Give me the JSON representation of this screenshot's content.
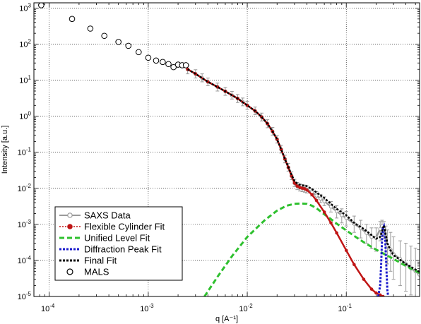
{
  "chart_data": {
    "type": "scatter",
    "xlabel": "q [A⁻¹]",
    "ylabel": "Intensity [a.u.]",
    "xscale": "log",
    "yscale": "log",
    "xlim": [
      7e-05,
      0.55
    ],
    "ylim": [
      1e-05,
      1400
    ],
    "grid": true,
    "legend_position": "lower-left",
    "x_ticks": [
      {
        "value": 0.0001,
        "mantissa": "10",
        "exp": "-4"
      },
      {
        "value": 0.001,
        "mantissa": "10",
        "exp": "-3"
      },
      {
        "value": 0.01,
        "mantissa": "10",
        "exp": "-2"
      },
      {
        "value": 0.1,
        "mantissa": "10",
        "exp": "-1"
      }
    ],
    "y_ticks": [
      {
        "value": 1e-05,
        "mantissa": "10",
        "exp": "-5"
      },
      {
        "value": 0.0001,
        "mantissa": "10",
        "exp": "-4"
      },
      {
        "value": 0.001,
        "mantissa": "10",
        "exp": "-3"
      },
      {
        "value": 0.01,
        "mantissa": "10",
        "exp": "-2"
      },
      {
        "value": 0.1,
        "mantissa": "10",
        "exp": "-1"
      },
      {
        "value": 1,
        "mantissa": "10",
        "exp": "0"
      },
      {
        "value": 10,
        "mantissa": "10",
        "exp": "1"
      },
      {
        "value": 100,
        "mantissa": "10",
        "exp": "2"
      },
      {
        "value": 1000,
        "mantissa": "10",
        "exp": "3"
      }
    ],
    "series": [
      {
        "name": "SAXS Data",
        "style": "gray-line-open-circle-errorbars",
        "color": "#9a9a9a",
        "x": [
          0.0025,
          0.003,
          0.0035,
          0.004,
          0.005,
          0.006,
          0.007,
          0.008,
          0.009,
          0.01,
          0.012,
          0.014,
          0.016,
          0.018,
          0.02,
          0.022,
          0.024,
          0.026,
          0.028,
          0.03,
          0.032,
          0.034,
          0.036,
          0.038,
          0.04,
          0.045,
          0.05,
          0.055,
          0.06,
          0.07,
          0.08,
          0.09,
          0.1,
          0.12,
          0.14,
          0.16,
          0.18,
          0.2,
          0.22,
          0.23,
          0.24,
          0.25,
          0.26,
          0.28,
          0.3,
          0.35,
          0.4,
          0.45,
          0.5,
          0.55
        ],
        "y": [
          20,
          15,
          11.5,
          9,
          6.5,
          4.9,
          3.8,
          3.1,
          2.5,
          2.0,
          1.4,
          0.95,
          0.62,
          0.38,
          0.23,
          0.12,
          0.065,
          0.038,
          0.022,
          0.014,
          0.0115,
          0.0105,
          0.0101,
          0.0098,
          0.0093,
          0.0078,
          0.0063,
          0.0052,
          0.0044,
          0.0031,
          0.0023,
          0.0018,
          0.0015,
          0.00105,
          0.00078,
          0.00058,
          0.00045,
          0.00042,
          0.00075,
          0.0009,
          0.0008,
          0.00045,
          0.00026,
          0.0002,
          0.00015,
          0.00011,
          8e-05,
          6e-05,
          5e-05,
          4e-05
        ],
        "err_low": [
          15,
          11.5,
          9,
          7,
          5,
          3.8,
          3.0,
          2.4,
          1.95,
          1.55,
          1.1,
          0.74,
          0.48,
          0.3,
          0.18,
          0.095,
          0.051,
          0.03,
          0.0175,
          0.0112,
          0.0092,
          0.0084,
          0.0081,
          0.0078,
          0.0074,
          0.0061,
          0.0049,
          0.004,
          0.0033,
          0.0022,
          0.0015,
          0.0011,
          0.0009,
          0.0006,
          0.00042,
          0.0003,
          0.00021,
          0.00018,
          0.00035,
          0.00045,
          0.0004,
          0.00018,
          8e-05,
          5e-05,
          3e-05,
          2e-05,
          1.4e-05,
          1.1e-05,
          1e-05,
          1e-05
        ],
        "err_high": [
          26,
          19.5,
          15,
          11.5,
          8.3,
          6.3,
          4.9,
          4.0,
          3.2,
          2.6,
          1.8,
          1.22,
          0.8,
          0.49,
          0.29,
          0.155,
          0.083,
          0.049,
          0.0285,
          0.0178,
          0.0145,
          0.0132,
          0.0127,
          0.0123,
          0.0117,
          0.0098,
          0.0081,
          0.0068,
          0.0058,
          0.0043,
          0.0033,
          0.0027,
          0.0023,
          0.0017,
          0.0013,
          0.001,
          0.0008,
          0.0008,
          0.0012,
          0.0013,
          0.0012,
          0.0009,
          0.0007,
          0.0006,
          0.00045,
          0.00035,
          0.0003,
          0.00025,
          0.00022,
          0.0002
        ]
      },
      {
        "name": "Flexible Cylinder Fit",
        "style": "red-line-filled-dot",
        "color": "#c01515",
        "x": [
          0.0025,
          0.003,
          0.004,
          0.005,
          0.006,
          0.008,
          0.01,
          0.012,
          0.014,
          0.016,
          0.018,
          0.02,
          0.022,
          0.024,
          0.026,
          0.028,
          0.03,
          0.032,
          0.034,
          0.036,
          0.038,
          0.04,
          0.045,
          0.05,
          0.06,
          0.07,
          0.08,
          0.1,
          0.12,
          0.15,
          0.18,
          0.2,
          0.22,
          0.235
        ],
        "y": [
          20,
          15,
          9,
          6.5,
          4.9,
          3.1,
          2.0,
          1.4,
          0.95,
          0.62,
          0.38,
          0.23,
          0.12,
          0.065,
          0.038,
          0.022,
          0.014,
          0.0115,
          0.0105,
          0.0101,
          0.0097,
          0.009,
          0.0067,
          0.0046,
          0.0022,
          0.0011,
          0.00058,
          0.00019,
          7.7e-05,
          3e-05,
          1.6e-05,
          1.25e-05,
          1.1e-05,
          1e-05
        ]
      },
      {
        "name": "Unified Level Fit",
        "style": "green-dashed",
        "color": "#2ec02e",
        "x": [
          0.0037,
          0.005,
          0.007,
          0.01,
          0.015,
          0.02,
          0.025,
          0.03,
          0.035,
          0.04,
          0.045,
          0.05,
          0.055,
          0.06,
          0.07,
          0.08,
          0.1,
          0.12,
          0.15,
          0.2,
          0.3,
          0.4,
          0.55
        ],
        "y": [
          1e-05,
          3.5e-05,
          0.00013,
          0.00045,
          0.0013,
          0.0024,
          0.0033,
          0.0037,
          0.0038,
          0.0037,
          0.0033,
          0.0028,
          0.0023,
          0.0019,
          0.0014,
          0.00105,
          0.00068,
          0.00048,
          0.00032,
          0.0002,
          0.00011,
          7e-05,
          4.5e-05
        ]
      },
      {
        "name": "Diffraction Peak Fit",
        "style": "blue-dotted",
        "color": "#1a1acc",
        "x": [
          0.21,
          0.22,
          0.225,
          0.23,
          0.235,
          0.24,
          0.245,
          0.25,
          0.255,
          0.26,
          0.265
        ],
        "y": [
          1e-05,
          2e-05,
          8e-05,
          0.0004,
          0.0008,
          0.0009,
          0.0006,
          0.0002,
          5e-05,
          1.5e-05,
          1e-05
        ]
      },
      {
        "name": "Final Fit",
        "style": "black-dotted",
        "color": "#000000",
        "x": [
          0.0025,
          0.003,
          0.004,
          0.005,
          0.006,
          0.008,
          0.01,
          0.012,
          0.014,
          0.016,
          0.018,
          0.02,
          0.022,
          0.024,
          0.026,
          0.028,
          0.03,
          0.032,
          0.034,
          0.036,
          0.038,
          0.04,
          0.045,
          0.05,
          0.055,
          0.06,
          0.07,
          0.08,
          0.1,
          0.12,
          0.15,
          0.2,
          0.22,
          0.23,
          0.24,
          0.25,
          0.26,
          0.28,
          0.3,
          0.4,
          0.55
        ],
        "y": [
          20,
          15,
          9,
          6.5,
          4.9,
          3.1,
          2.0,
          1.4,
          0.95,
          0.62,
          0.38,
          0.23,
          0.12,
          0.066,
          0.039,
          0.024,
          0.016,
          0.0135,
          0.0125,
          0.0121,
          0.0118,
          0.0115,
          0.0095,
          0.0077,
          0.0064,
          0.0054,
          0.0037,
          0.0027,
          0.0018,
          0.0011,
          0.00075,
          0.0004,
          0.00045,
          0.00065,
          0.00095,
          0.00055,
          0.0003,
          0.00019,
          0.00014,
          8e-05,
          4.8e-05
        ]
      },
      {
        "name": "MALS",
        "style": "open-circle",
        "color": "#000000",
        "x": [
          8.3e-05,
          0.00017,
          0.00026,
          0.00036,
          0.0005,
          0.00063,
          0.0008,
          0.001,
          0.0012,
          0.0014,
          0.0016,
          0.0018,
          0.002,
          0.0022,
          0.0024
        ],
        "y": [
          1200,
          500,
          270,
          170,
          115,
          90,
          60,
          42,
          35,
          32,
          28,
          23,
          27,
          26,
          26
        ]
      }
    ]
  }
}
